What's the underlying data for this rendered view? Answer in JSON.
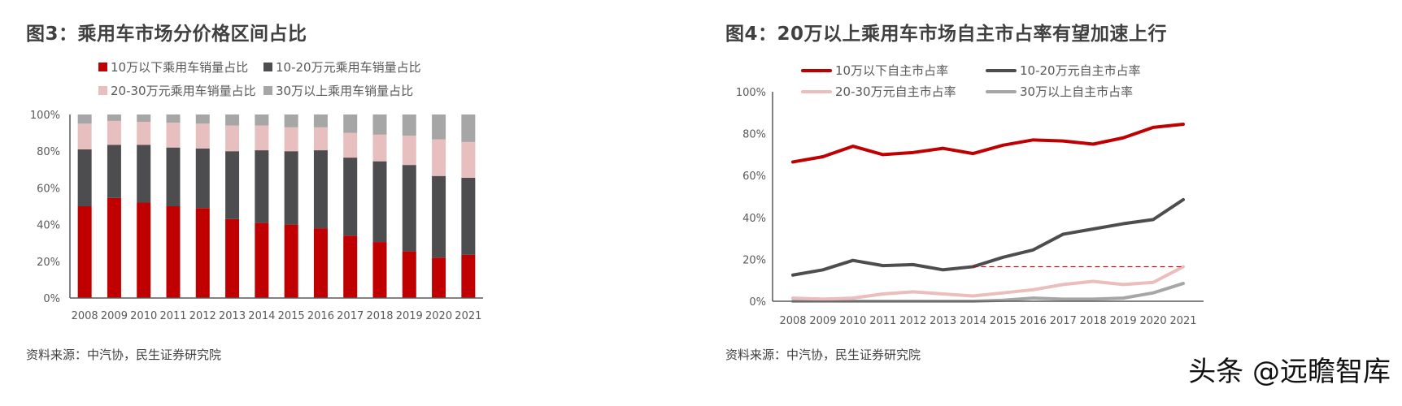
{
  "left": {
    "title": "图3：乘用车市场分价格区间占比",
    "source": "资料来源：中汽协，民生证券研究院",
    "legend": [
      {
        "label": "10万以下乘用车销量占比",
        "color": "#C00000"
      },
      {
        "label": "10-20万元乘用车销量占比",
        "color": "#4D4D4F"
      },
      {
        "label": "20-30万元乘用车销量占比",
        "color": "#E8BFBF"
      },
      {
        "label": "30万以上乘用车销量占比",
        "color": "#A6A6A6"
      }
    ]
  },
  "right": {
    "title": "图4：20万以上乘用车市场自主市占率有望加速上行",
    "source": "资料来源：中汽协，民生证券研究院",
    "legend": [
      {
        "label": "10万以下自主市占率",
        "color": "#C00000"
      },
      {
        "label": "10-20万元自主市占率",
        "color": "#4D4D4F"
      },
      {
        "label": "20-30万元自主市占率",
        "color": "#EBBDBD"
      },
      {
        "label": "30万以上自主市占率",
        "color": "#A6A6A6"
      }
    ]
  },
  "watermark": "头条 @远瞻智库",
  "chart_data": [
    {
      "type": "bar",
      "stacked": true,
      "title": "图3：乘用车市场分价格区间占比",
      "categories": [
        "2008",
        "2009",
        "2010",
        "2011",
        "2012",
        "2013",
        "2014",
        "2015",
        "2016",
        "2017",
        "2018",
        "2019",
        "2020",
        "2021"
      ],
      "series": [
        {
          "name": "10万以下乘用车销量占比",
          "color": "#C00000",
          "values": [
            50,
            54.5,
            52,
            50,
            49,
            43,
            41,
            40,
            38,
            34,
            30.5,
            25.5,
            22,
            23.5
          ]
        },
        {
          "name": "10-20万元乘用车销量占比",
          "color": "#4D4D4F",
          "values": [
            31,
            29,
            31.5,
            32,
            32.5,
            37,
            39.5,
            40,
            42.5,
            42.5,
            44,
            47,
            44.5,
            42
          ]
        },
        {
          "name": "20-30万元乘用车销量占比",
          "color": "#E8BFBF",
          "values": [
            14,
            13,
            12.5,
            13.5,
            13.5,
            14,
            13.5,
            13,
            12.5,
            13.5,
            14.5,
            16,
            20,
            19.5
          ]
        },
        {
          "name": "30万以上乘用车销量占比",
          "color": "#A6A6A6",
          "values": [
            5,
            3.5,
            4,
            4.5,
            5,
            6,
            6,
            7,
            7,
            10,
            11,
            11.5,
            13.5,
            15
          ]
        }
      ],
      "yticks": [
        "0%",
        "20%",
        "40%",
        "60%",
        "80%",
        "100%"
      ],
      "ylim": [
        0,
        100
      ],
      "xlabel": "",
      "ylabel": "",
      "grid": false,
      "legend_position": "top"
    },
    {
      "type": "line",
      "title": "图4：20万以上乘用车市场自主市占率有望加速上行",
      "categories": [
        "2008",
        "2009",
        "2010",
        "2011",
        "2012",
        "2013",
        "2014",
        "2015",
        "2016",
        "2017",
        "2018",
        "2019",
        "2020",
        "2021"
      ],
      "series": [
        {
          "name": "10万以下自主市占率",
          "color": "#C00000",
          "values": [
            66.5,
            69,
            74,
            70,
            71,
            73,
            70.5,
            74.5,
            77,
            76.5,
            75,
            78,
            83,
            84.5
          ]
        },
        {
          "name": "10-20万元自主市占率",
          "color": "#4D4D4F",
          "values": [
            12.5,
            15,
            19.5,
            17,
            17.5,
            15,
            16.5,
            21,
            24.5,
            32,
            34.5,
            37,
            39,
            48.5
          ]
        },
        {
          "name": "20-30万元自主市占率",
          "color": "#EBBDBD",
          "values": [
            1.5,
            1,
            1.5,
            3.5,
            4.5,
            3.5,
            2.5,
            4,
            5.5,
            8,
            9.5,
            8,
            9,
            16.5
          ]
        },
        {
          "name": "30万以上自主市占率",
          "color": "#A6A6A6",
          "values": [
            0,
            0,
            0,
            0,
            0,
            0,
            0,
            0.5,
            1.5,
            1,
            1,
            1.5,
            4,
            8.5
          ]
        }
      ],
      "annotations": [
        {
          "type": "dashed-hline",
          "color": "#C00000",
          "y": 16.5,
          "x_from": "2014",
          "x_to": "2021"
        }
      ],
      "yticks": [
        "0%",
        "20%",
        "40%",
        "60%",
        "80%",
        "100%"
      ],
      "ylim": [
        0,
        100
      ],
      "xlabel": "",
      "ylabel": "",
      "grid": false,
      "legend_position": "top"
    }
  ]
}
